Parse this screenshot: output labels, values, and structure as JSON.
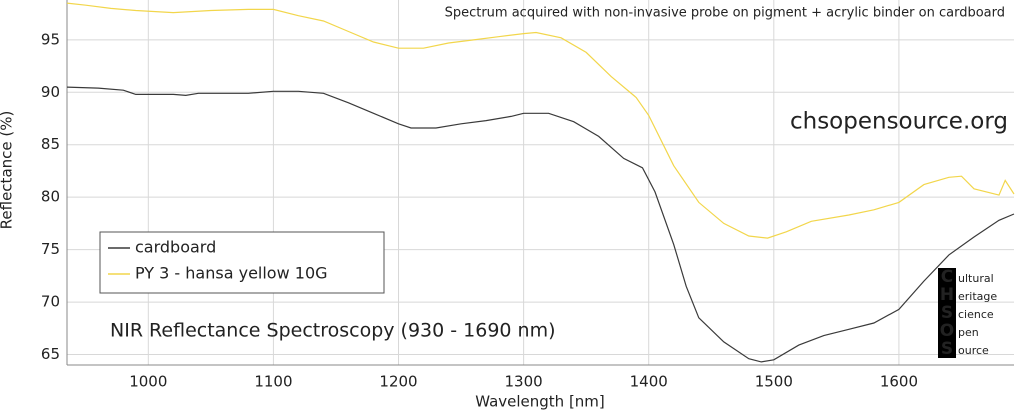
{
  "chart_data": {
    "type": "line",
    "annotation": "Spectrum acquired with non-invasive probe on pigment + acrylic binder on cardboard",
    "website": "chsopensource.org",
    "subtitle": "NIR Reflectance Spectroscopy (930 - 1690 nm)",
    "x_label": "Wavelength [nm]",
    "y_label": "Reflectance (%)",
    "xlim": [
      935,
      1692
    ],
    "ylim": [
      64,
      98.8
    ],
    "xticks": [
      1000,
      1100,
      1200,
      1300,
      1400,
      1500,
      1600
    ],
    "yticks": [
      65,
      70,
      75,
      80,
      85,
      90,
      95
    ],
    "grid": true,
    "legend": "bottom-left",
    "series": [
      {
        "name": "cardboard",
        "color": "#3a3a3a",
        "x": [
          935,
          960,
          980,
          990,
          1000,
          1020,
          1030,
          1040,
          1060,
          1080,
          1100,
          1120,
          1140,
          1160,
          1180,
          1200,
          1210,
          1230,
          1250,
          1270,
          1290,
          1300,
          1320,
          1340,
          1360,
          1380,
          1395,
          1405,
          1420,
          1430,
          1440,
          1460,
          1480,
          1490,
          1500,
          1520,
          1540,
          1560,
          1580,
          1600,
          1620,
          1640,
          1660,
          1680,
          1692
        ],
        "values": [
          90.5,
          90.4,
          90.2,
          89.8,
          89.8,
          89.8,
          89.7,
          89.9,
          89.9,
          89.9,
          90.1,
          90.1,
          89.9,
          89.0,
          88.0,
          87.0,
          86.6,
          86.6,
          87.0,
          87.3,
          87.7,
          88.0,
          88.0,
          87.2,
          85.8,
          83.7,
          82.8,
          80.5,
          75.5,
          71.5,
          68.5,
          66.2,
          64.6,
          64.3,
          64.5,
          65.9,
          66.8,
          67.4,
          68.0,
          69.3,
          72.0,
          74.5,
          76.2,
          77.8,
          78.4
        ]
      },
      {
        "name": "PY 3 - hansa yellow 10G",
        "color": "#f2d64b",
        "x": [
          935,
          950,
          970,
          990,
          1020,
          1050,
          1080,
          1100,
          1120,
          1140,
          1160,
          1180,
          1200,
          1220,
          1240,
          1260,
          1280,
          1300,
          1310,
          1330,
          1350,
          1370,
          1390,
          1400,
          1420,
          1440,
          1460,
          1480,
          1495,
          1510,
          1530,
          1560,
          1580,
          1600,
          1620,
          1640,
          1650,
          1660,
          1680,
          1685,
          1692
        ],
        "values": [
          98.5,
          98.3,
          98.0,
          97.8,
          97.6,
          97.8,
          97.9,
          97.9,
          97.3,
          96.8,
          95.8,
          94.8,
          94.2,
          94.2,
          94.7,
          95.0,
          95.3,
          95.6,
          95.7,
          95.2,
          93.8,
          91.5,
          89.5,
          87.8,
          83.0,
          79.5,
          77.5,
          76.3,
          76.1,
          76.7,
          77.7,
          78.3,
          78.8,
          79.5,
          81.2,
          81.9,
          82.0,
          80.8,
          80.2,
          81.6,
          80.3
        ]
      }
    ],
    "logo": {
      "letters": [
        "C",
        "H",
        "S",
        "O",
        "S"
      ],
      "words": [
        "ultural",
        "eritage",
        "cience",
        "pen",
        "ource"
      ]
    }
  }
}
